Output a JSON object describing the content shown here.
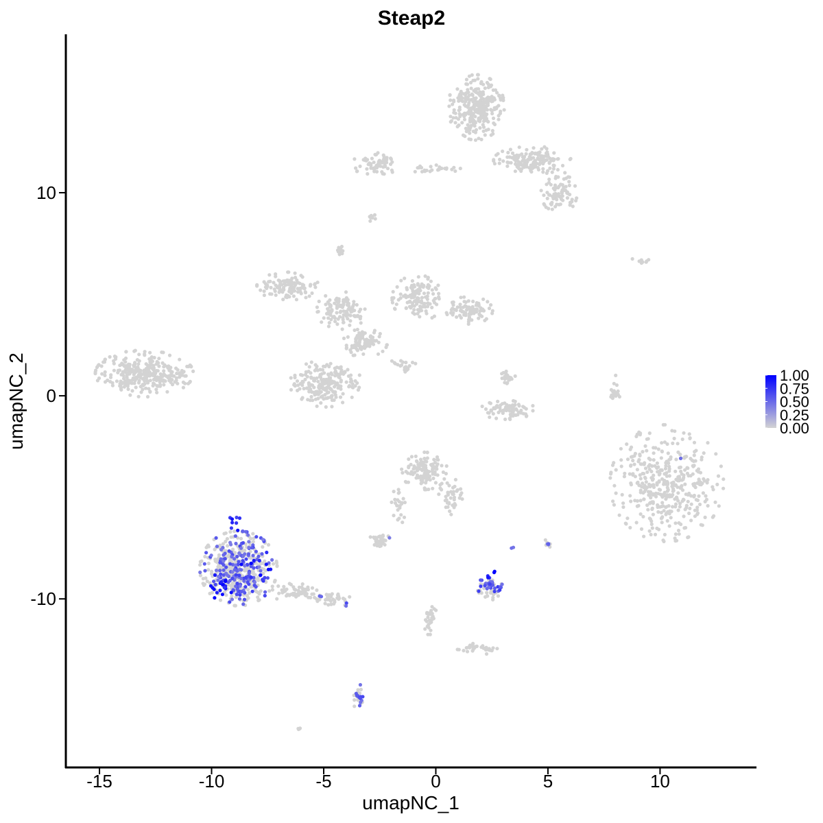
{
  "chart_data": {
    "type": "scatter",
    "title": "Steap2",
    "xlabel": "umapNC_1",
    "ylabel": "umapNC_2",
    "xlim": [
      -16.5,
      14.3
    ],
    "ylim": [
      -18.3,
      17.8
    ],
    "x_ticks": [
      {
        "value": -15,
        "label": "-15"
      },
      {
        "value": -10,
        "label": "-10"
      },
      {
        "value": -5,
        "label": "-5"
      },
      {
        "value": 0,
        "label": "0"
      },
      {
        "value": 5,
        "label": "5"
      },
      {
        "value": 10,
        "label": "10"
      }
    ],
    "y_ticks": [
      {
        "value": 10,
        "label": "10"
      },
      {
        "value": 0,
        "label": "0"
      },
      {
        "value": -10,
        "label": "-10"
      }
    ],
    "grid": false,
    "legend": {
      "placement": "right",
      "min": 0.0,
      "max": 1.0,
      "low_color": "#d3d3d3",
      "high_color": "#0000ff",
      "labels": [
        {
          "value": 1.0,
          "label": "1.00"
        },
        {
          "value": 0.75,
          "label": "0.75"
        },
        {
          "value": 0.5,
          "label": "0.50"
        },
        {
          "value": 0.25,
          "label": "0.25"
        },
        {
          "value": 0.0,
          "label": "0.00"
        }
      ]
    },
    "clusters": [
      {
        "cx": -13.0,
        "cy": 1.1,
        "rx": 1.9,
        "ry": 1.0,
        "n": 320,
        "expr": 0
      },
      {
        "cx": 1.8,
        "cy": 14.2,
        "rx": 1.1,
        "ry": 1.4,
        "n": 300,
        "expr": 0
      },
      {
        "cx": 4.3,
        "cy": 11.6,
        "rx": 1.5,
        "ry": 0.6,
        "n": 160,
        "expr": 0
      },
      {
        "cx": 5.5,
        "cy": 10.0,
        "rx": 0.7,
        "ry": 0.9,
        "n": 80,
        "expr": 0
      },
      {
        "cx": -2.7,
        "cy": 11.4,
        "rx": 0.9,
        "ry": 0.5,
        "n": 70,
        "expr": 0
      },
      {
        "cx": -0.2,
        "cy": 11.2,
        "rx": 1.2,
        "ry": 0.2,
        "n": 25,
        "expr": 0
      },
      {
        "cx": -2.9,
        "cy": 8.8,
        "rx": 0.2,
        "ry": 0.2,
        "n": 10,
        "expr": 0
      },
      {
        "cx": -4.3,
        "cy": 7.2,
        "rx": 0.2,
        "ry": 0.3,
        "n": 12,
        "expr": 0
      },
      {
        "cx": -6.6,
        "cy": 5.4,
        "rx": 1.2,
        "ry": 0.6,
        "n": 120,
        "expr": 0
      },
      {
        "cx": -4.2,
        "cy": 4.2,
        "rx": 1.0,
        "ry": 0.8,
        "n": 110,
        "expr": 0
      },
      {
        "cx": -3.2,
        "cy": 2.6,
        "rx": 0.9,
        "ry": 0.6,
        "n": 90,
        "expr": 0
      },
      {
        "cx": -4.9,
        "cy": 0.6,
        "rx": 1.4,
        "ry": 1.0,
        "n": 220,
        "expr": 0
      },
      {
        "cx": -0.8,
        "cy": 4.8,
        "rx": 1.0,
        "ry": 1.0,
        "n": 130,
        "expr": 0
      },
      {
        "cx": 1.5,
        "cy": 4.2,
        "rx": 0.9,
        "ry": 0.6,
        "n": 90,
        "expr": 0
      },
      {
        "cx": -1.5,
        "cy": 1.5,
        "rx": 0.6,
        "ry": 0.3,
        "n": 20,
        "expr": 0
      },
      {
        "cx": 3.2,
        "cy": 0.9,
        "rx": 0.3,
        "ry": 0.4,
        "n": 20,
        "expr": 0
      },
      {
        "cx": 3.2,
        "cy": -0.7,
        "rx": 1.1,
        "ry": 0.4,
        "n": 80,
        "expr": 0
      },
      {
        "cx": 8.0,
        "cy": 0.2,
        "rx": 0.2,
        "ry": 0.7,
        "n": 20,
        "expr": 0
      },
      {
        "cx": 10.3,
        "cy": -4.3,
        "rx": 2.2,
        "ry": 2.5,
        "n": 420,
        "expr": 0
      },
      {
        "cx": -0.5,
        "cy": -3.7,
        "rx": 0.9,
        "ry": 0.8,
        "n": 120,
        "expr": 0
      },
      {
        "cx": 0.7,
        "cy": -5.0,
        "rx": 0.5,
        "ry": 0.8,
        "n": 40,
        "expr": 0
      },
      {
        "cx": -1.7,
        "cy": -5.5,
        "rx": 0.3,
        "ry": 0.8,
        "n": 25,
        "expr": 0
      },
      {
        "cx": -2.5,
        "cy": -7.1,
        "rx": 0.4,
        "ry": 0.3,
        "n": 35,
        "expr": 0
      },
      {
        "cx": -8.8,
        "cy": -8.5,
        "rx": 1.5,
        "ry": 1.6,
        "n": 380,
        "expr": 0
      },
      {
        "cx": -6.3,
        "cy": -9.7,
        "rx": 0.9,
        "ry": 0.4,
        "n": 60,
        "expr": 0
      },
      {
        "cx": -4.6,
        "cy": -10.1,
        "rx": 0.8,
        "ry": 0.3,
        "n": 35,
        "expr": 0
      },
      {
        "cx": 2.4,
        "cy": -9.5,
        "rx": 0.5,
        "ry": 0.5,
        "n": 40,
        "expr": 0
      },
      {
        "cx": -3.5,
        "cy": -14.9,
        "rx": 0.2,
        "ry": 0.6,
        "n": 15,
        "expr": 0
      },
      {
        "cx": -0.3,
        "cy": -11.0,
        "rx": 0.3,
        "ry": 0.8,
        "n": 30,
        "expr": 0
      },
      {
        "cx": 1.6,
        "cy": -12.4,
        "rx": 0.6,
        "ry": 0.2,
        "n": 20,
        "expr": 0
      },
      {
        "cx": 2.4,
        "cy": -12.5,
        "rx": 0.3,
        "ry": 0.2,
        "n": 12,
        "expr": 0
      },
      {
        "cx": -6.1,
        "cy": -16.4,
        "rx": 0.1,
        "ry": 0.1,
        "n": 4,
        "expr": 0
      },
      {
        "cx": 9.2,
        "cy": 6.7,
        "rx": 0.5,
        "ry": 0.2,
        "n": 8,
        "expr": 0
      },
      {
        "cx": 5.0,
        "cy": -7.3,
        "rx": 0.2,
        "ry": 0.2,
        "n": 6,
        "expr": 0
      },
      {
        "cx": -8.8,
        "cy": -8.5,
        "rx": 1.5,
        "ry": 1.6,
        "n": 170,
        "expr": 0.55
      },
      {
        "cx": -9.6,
        "cy": -9.3,
        "rx": 0.7,
        "ry": 0.6,
        "n": 18,
        "expr": 0.9
      },
      {
        "cx": -8.0,
        "cy": -8.4,
        "rx": 0.6,
        "ry": 1.2,
        "n": 12,
        "expr": 0.85
      },
      {
        "cx": -8.9,
        "cy": -6.4,
        "rx": 0.4,
        "ry": 0.5,
        "n": 8,
        "expr": 0.8
      },
      {
        "cx": 2.4,
        "cy": -9.4,
        "rx": 0.5,
        "ry": 0.4,
        "n": 30,
        "expr": 0.6
      },
      {
        "cx": 2.5,
        "cy": -8.8,
        "rx": 0.2,
        "ry": 0.2,
        "n": 4,
        "expr": 0.95
      },
      {
        "cx": -3.4,
        "cy": -14.8,
        "rx": 0.2,
        "ry": 0.5,
        "n": 14,
        "expr": 0.6
      },
      {
        "cx": 5.0,
        "cy": -7.3,
        "rx": 0.1,
        "ry": 0.1,
        "n": 3,
        "expr": 0.55
      },
      {
        "cx": 3.4,
        "cy": -7.5,
        "rx": 0.1,
        "ry": 0.1,
        "n": 2,
        "expr": 0.5
      },
      {
        "cx": 10.9,
        "cy": -3.1,
        "rx": 0.05,
        "ry": 0.05,
        "n": 1,
        "expr": 0.6
      },
      {
        "cx": -2.1,
        "cy": -7.0,
        "rx": 0.05,
        "ry": 0.05,
        "n": 1,
        "expr": 0.55
      },
      {
        "cx": -5.2,
        "cy": -9.9,
        "rx": 0.1,
        "ry": 0.1,
        "n": 2,
        "expr": 0.5
      },
      {
        "cx": -4.0,
        "cy": -10.3,
        "rx": 0.1,
        "ry": 0.1,
        "n": 2,
        "expr": 0.5
      }
    ]
  }
}
